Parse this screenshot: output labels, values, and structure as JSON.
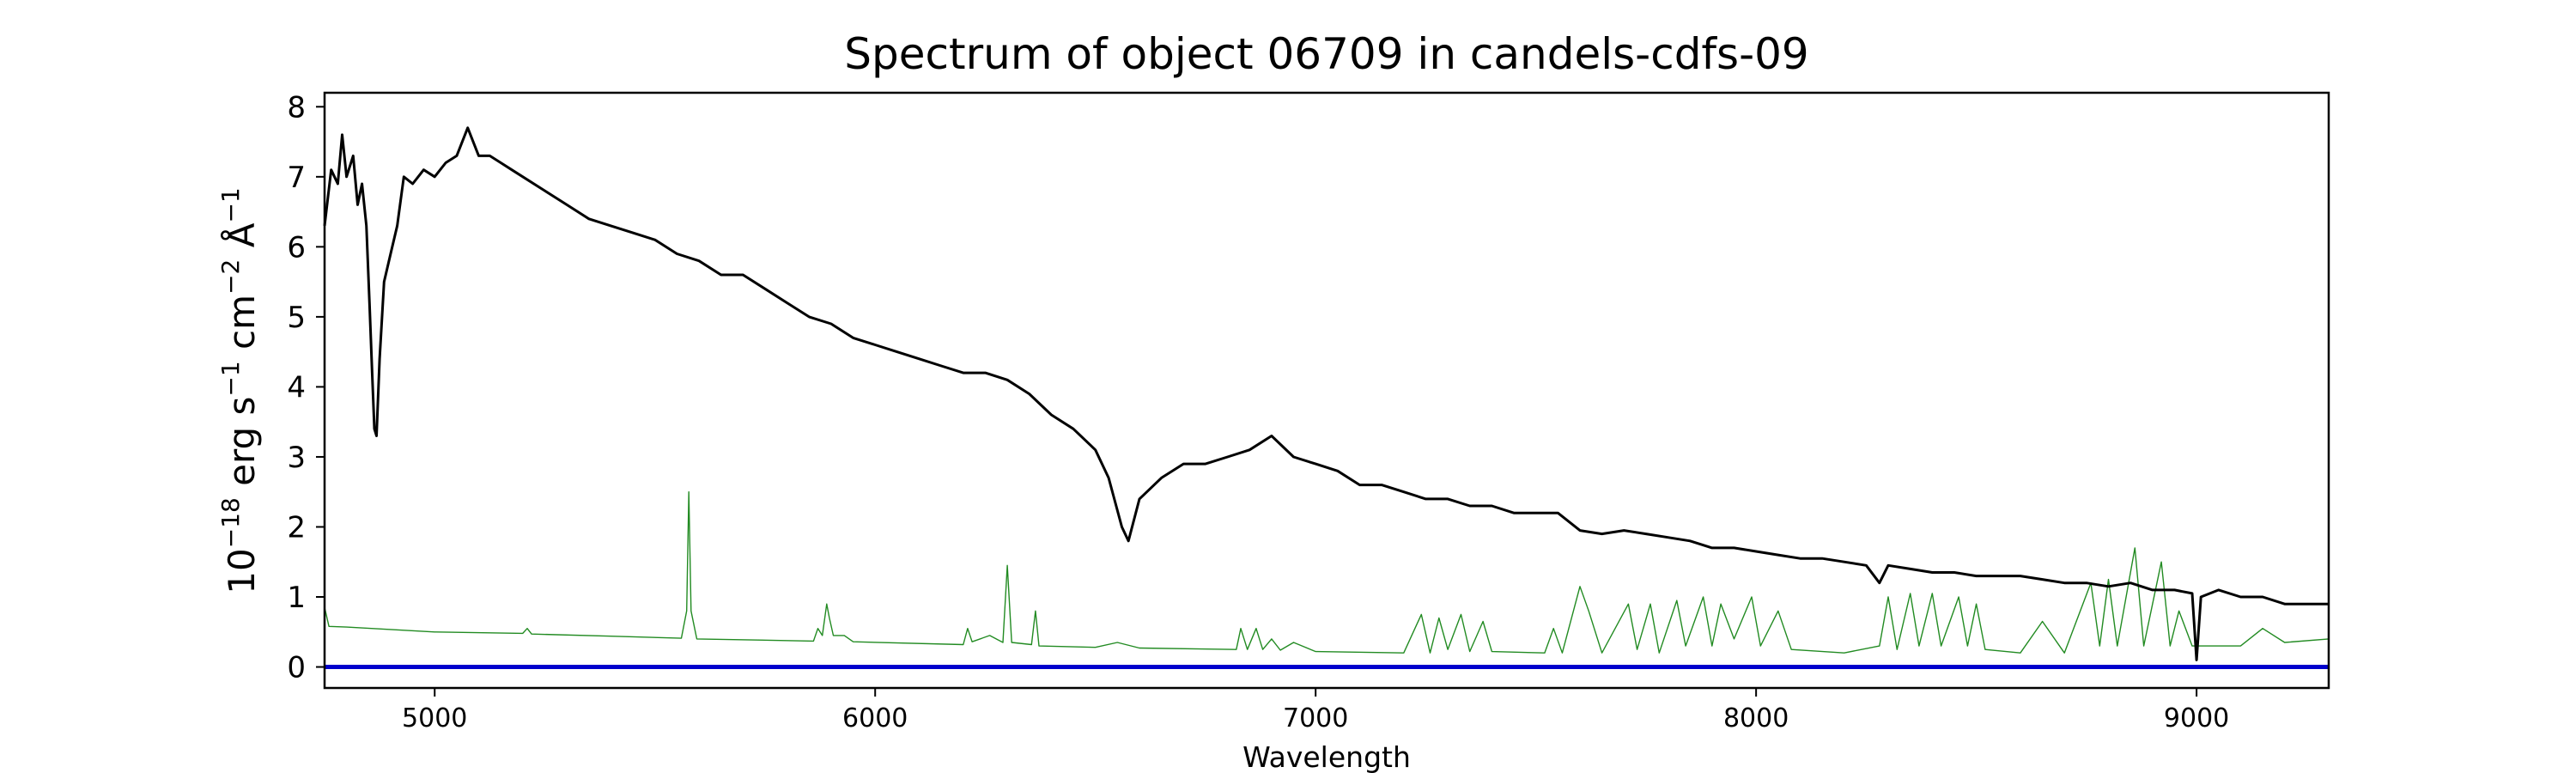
{
  "chart_data": {
    "type": "line",
    "title": "Spectrum of object 06709 in candels-cdfs-09",
    "xlabel": "Wavelength",
    "ylabel_parts": {
      "base": "10",
      "exp": "−18",
      "unit_erg": "erg s",
      "exp_s": "−1",
      "unit_cm": "cm",
      "exp_cm": "−2",
      "unit_a": "Å",
      "exp_a": "−1"
    },
    "xlim": [
      4750,
      9300
    ],
    "ylim": [
      -0.3,
      8.2
    ],
    "x_ticks": [
      5000,
      6000,
      7000,
      8000,
      9000
    ],
    "y_ticks": [
      0,
      1,
      2,
      3,
      4,
      5,
      6,
      7,
      8
    ],
    "grid": false,
    "series": [
      {
        "color": "#000000",
        "role": "flux",
        "points": [
          [
            4750,
            6.3
          ],
          [
            4765,
            7.1
          ],
          [
            4780,
            6.9
          ],
          [
            4790,
            7.6
          ],
          [
            4800,
            7.0
          ],
          [
            4815,
            7.3
          ],
          [
            4825,
            6.6
          ],
          [
            4835,
            6.9
          ],
          [
            4845,
            6.3
          ],
          [
            4852,
            5.2
          ],
          [
            4858,
            4.2
          ],
          [
            4863,
            3.4
          ],
          [
            4868,
            3.3
          ],
          [
            4875,
            4.4
          ],
          [
            4885,
            5.5
          ],
          [
            4900,
            5.9
          ],
          [
            4915,
            6.3
          ],
          [
            4930,
            7.0
          ],
          [
            4950,
            6.9
          ],
          [
            4975,
            7.1
          ],
          [
            5000,
            7.0
          ],
          [
            5025,
            7.2
          ],
          [
            5050,
            7.3
          ],
          [
            5075,
            7.7
          ],
          [
            5100,
            7.3
          ],
          [
            5125,
            7.3
          ],
          [
            5150,
            7.2
          ],
          [
            5175,
            7.1
          ],
          [
            5200,
            7.0
          ],
          [
            5250,
            6.8
          ],
          [
            5300,
            6.6
          ],
          [
            5350,
            6.4
          ],
          [
            5400,
            6.3
          ],
          [
            5450,
            6.2
          ],
          [
            5500,
            6.1
          ],
          [
            5550,
            5.9
          ],
          [
            5600,
            5.8
          ],
          [
            5650,
            5.6
          ],
          [
            5700,
            5.6
          ],
          [
            5750,
            5.4
          ],
          [
            5800,
            5.2
          ],
          [
            5850,
            5.0
          ],
          [
            5900,
            4.9
          ],
          [
            5950,
            4.7
          ],
          [
            6000,
            4.6
          ],
          [
            6050,
            4.5
          ],
          [
            6100,
            4.4
          ],
          [
            6150,
            4.3
          ],
          [
            6200,
            4.2
          ],
          [
            6250,
            4.2
          ],
          [
            6300,
            4.1
          ],
          [
            6350,
            3.9
          ],
          [
            6400,
            3.6
          ],
          [
            6450,
            3.4
          ],
          [
            6500,
            3.1
          ],
          [
            6530,
            2.7
          ],
          [
            6560,
            2.0
          ],
          [
            6575,
            1.8
          ],
          [
            6600,
            2.4
          ],
          [
            6650,
            2.7
          ],
          [
            6700,
            2.9
          ],
          [
            6750,
            2.9
          ],
          [
            6800,
            3.0
          ],
          [
            6850,
            3.1
          ],
          [
            6900,
            3.3
          ],
          [
            6950,
            3.0
          ],
          [
            7000,
            2.9
          ],
          [
            7050,
            2.8
          ],
          [
            7100,
            2.6
          ],
          [
            7150,
            2.6
          ],
          [
            7200,
            2.5
          ],
          [
            7250,
            2.4
          ],
          [
            7300,
            2.4
          ],
          [
            7350,
            2.3
          ],
          [
            7400,
            2.3
          ],
          [
            7450,
            2.2
          ],
          [
            7500,
            2.2
          ],
          [
            7550,
            2.2
          ],
          [
            7600,
            1.95
          ],
          [
            7650,
            1.9
          ],
          [
            7700,
            1.95
          ],
          [
            7750,
            1.9
          ],
          [
            7800,
            1.85
          ],
          [
            7850,
            1.8
          ],
          [
            7900,
            1.7
          ],
          [
            7950,
            1.7
          ],
          [
            8000,
            1.65
          ],
          [
            8050,
            1.6
          ],
          [
            8100,
            1.55
          ],
          [
            8150,
            1.55
          ],
          [
            8200,
            1.5
          ],
          [
            8250,
            1.45
          ],
          [
            8280,
            1.2
          ],
          [
            8300,
            1.45
          ],
          [
            8350,
            1.4
          ],
          [
            8400,
            1.35
          ],
          [
            8450,
            1.35
          ],
          [
            8500,
            1.3
          ],
          [
            8550,
            1.3
          ],
          [
            8600,
            1.3
          ],
          [
            8650,
            1.25
          ],
          [
            8700,
            1.2
          ],
          [
            8750,
            1.2
          ],
          [
            8800,
            1.15
          ],
          [
            8850,
            1.2
          ],
          [
            8900,
            1.1
          ],
          [
            8950,
            1.1
          ],
          [
            8990,
            1.05
          ],
          [
            9000,
            0.1
          ],
          [
            9010,
            1.0
          ],
          [
            9050,
            1.1
          ],
          [
            9100,
            1.0
          ],
          [
            9150,
            1.0
          ],
          [
            9200,
            0.9
          ],
          [
            9250,
            0.9
          ],
          [
            9300,
            0.9
          ]
        ]
      },
      {
        "color": "#228b22",
        "role": "sky",
        "points": [
          [
            4750,
            0.85
          ],
          [
            4760,
            0.58
          ],
          [
            4800,
            0.57
          ],
          [
            5000,
            0.5
          ],
          [
            5200,
            0.48
          ],
          [
            5210,
            0.55
          ],
          [
            5220,
            0.47
          ],
          [
            5400,
            0.44
          ],
          [
            5560,
            0.41
          ],
          [
            5572,
            0.8
          ],
          [
            5577,
            2.5
          ],
          [
            5582,
            0.8
          ],
          [
            5595,
            0.4
          ],
          [
            5860,
            0.37
          ],
          [
            5870,
            0.55
          ],
          [
            5880,
            0.45
          ],
          [
            5890,
            0.9
          ],
          [
            5896,
            0.7
          ],
          [
            5905,
            0.45
          ],
          [
            5930,
            0.45
          ],
          [
            5950,
            0.36
          ],
          [
            6200,
            0.32
          ],
          [
            6210,
            0.55
          ],
          [
            6220,
            0.36
          ],
          [
            6260,
            0.45
          ],
          [
            6290,
            0.35
          ],
          [
            6300,
            1.45
          ],
          [
            6310,
            0.35
          ],
          [
            6355,
            0.32
          ],
          [
            6364,
            0.8
          ],
          [
            6372,
            0.3
          ],
          [
            6500,
            0.28
          ],
          [
            6550,
            0.35
          ],
          [
            6600,
            0.27
          ],
          [
            6820,
            0.25
          ],
          [
            6830,
            0.55
          ],
          [
            6845,
            0.25
          ],
          [
            6865,
            0.55
          ],
          [
            6880,
            0.25
          ],
          [
            6900,
            0.4
          ],
          [
            6920,
            0.24
          ],
          [
            6950,
            0.35
          ],
          [
            7000,
            0.22
          ],
          [
            7200,
            0.2
          ],
          [
            7240,
            0.75
          ],
          [
            7260,
            0.2
          ],
          [
            7280,
            0.7
          ],
          [
            7300,
            0.25
          ],
          [
            7330,
            0.75
          ],
          [
            7350,
            0.22
          ],
          [
            7380,
            0.65
          ],
          [
            7400,
            0.22
          ],
          [
            7520,
            0.2
          ],
          [
            7540,
            0.55
          ],
          [
            7560,
            0.2
          ],
          [
            7600,
            1.15
          ],
          [
            7620,
            0.8
          ],
          [
            7650,
            0.2
          ],
          [
            7710,
            0.9
          ],
          [
            7730,
            0.25
          ],
          [
            7760,
            0.9
          ],
          [
            7780,
            0.2
          ],
          [
            7820,
            0.95
          ],
          [
            7840,
            0.3
          ],
          [
            7880,
            1.0
          ],
          [
            7900,
            0.3
          ],
          [
            7920,
            0.9
          ],
          [
            7950,
            0.4
          ],
          [
            7990,
            1.0
          ],
          [
            8010,
            0.3
          ],
          [
            8050,
            0.8
          ],
          [
            8080,
            0.25
          ],
          [
            8200,
            0.2
          ],
          [
            8280,
            0.3
          ],
          [
            8300,
            1.0
          ],
          [
            8320,
            0.25
          ],
          [
            8350,
            1.05
          ],
          [
            8370,
            0.3
          ],
          [
            8400,
            1.05
          ],
          [
            8420,
            0.3
          ],
          [
            8460,
            1.0
          ],
          [
            8480,
            0.3
          ],
          [
            8500,
            0.9
          ],
          [
            8520,
            0.25
          ],
          [
            8600,
            0.2
          ],
          [
            8650,
            0.65
          ],
          [
            8700,
            0.2
          ],
          [
            8760,
            1.2
          ],
          [
            8780,
            0.3
          ],
          [
            8800,
            1.25
          ],
          [
            8820,
            0.3
          ],
          [
            8860,
            1.7
          ],
          [
            8880,
            0.3
          ],
          [
            8920,
            1.5
          ],
          [
            8940,
            0.3
          ],
          [
            8960,
            0.8
          ],
          [
            8990,
            0.3
          ],
          [
            9100,
            0.3
          ],
          [
            9150,
            0.55
          ],
          [
            9200,
            0.35
          ],
          [
            9300,
            0.4
          ]
        ]
      },
      {
        "color": "#0000cc",
        "role": "model",
        "points": [
          [
            4750,
            0.0
          ],
          [
            9300,
            0.0
          ]
        ]
      }
    ]
  }
}
